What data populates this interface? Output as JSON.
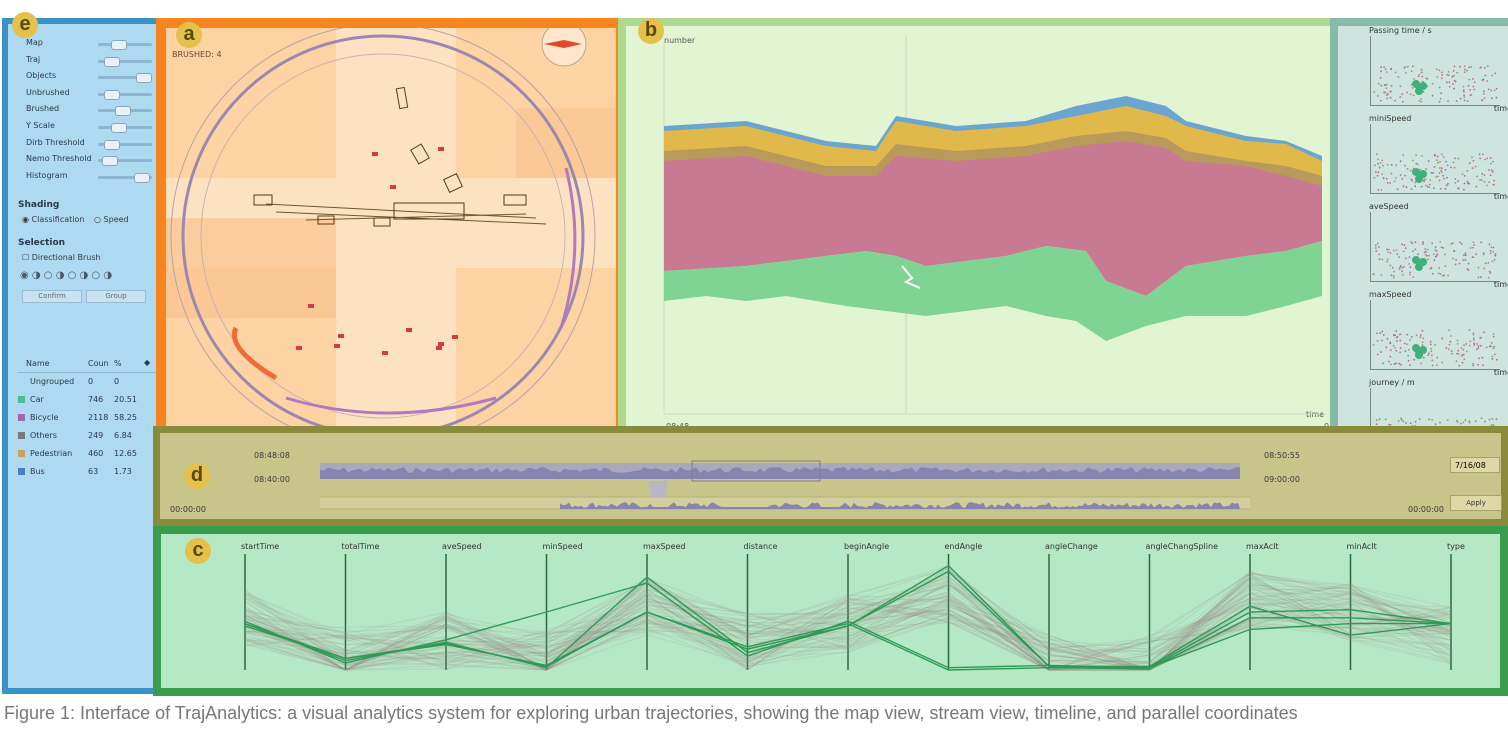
{
  "panels": {
    "a": "a",
    "b": "b",
    "c": "c",
    "d": "d",
    "e": "e"
  },
  "controls": {
    "sliders": [
      {
        "label": "Map",
        "value": 0.3
      },
      {
        "label": "Traj",
        "value": 0.15
      },
      {
        "label": "Objects",
        "value": 0.9
      },
      {
        "label": "Unbrushed",
        "value": 0.15
      },
      {
        "label": "Brushed",
        "value": 0.4
      },
      {
        "label": "Y Scale",
        "value": 0.3
      },
      {
        "label": "Dirb Threshold",
        "value": 0.15
      },
      {
        "label": "Nemo Threshold",
        "value": 0.1
      },
      {
        "label": "Histogram",
        "value": 0.85
      }
    ],
    "shading_title": "Shading",
    "shading_options": [
      "Classification",
      "Speed"
    ],
    "selection_title": "Selection",
    "directional_brush": "Directional Brush",
    "confirm_label": "Confirm",
    "group_label": "Group",
    "table_headers": [
      "Name",
      "Coun",
      "%"
    ],
    "groups": [
      {
        "name": "Ungrouped",
        "count": "0",
        "pct": "0",
        "color": "#add9f1"
      },
      {
        "name": "Car",
        "count": "746",
        "pct": "20.51",
        "color": "#4fb896"
      },
      {
        "name": "Bicycle",
        "count": "2118",
        "pct": "58.25",
        "color": "#a066b0"
      },
      {
        "name": "Others",
        "count": "249",
        "pct": "6.84",
        "color": "#7a7a7a"
      },
      {
        "name": "Pedestrian",
        "count": "460",
        "pct": "12.65",
        "color": "#c9a15a"
      },
      {
        "name": "Bus",
        "count": "63",
        "pct": "1.73",
        "color": "#4a7cc0"
      }
    ]
  },
  "map": {
    "brushed_label": "BRUSHED: 4"
  },
  "stream": {
    "ylabel": "number",
    "xlabel": "time",
    "start_time": "08:48",
    "end_time": "0"
  },
  "scatter": {
    "labels": [
      "Passing time / s",
      "miniSpeed",
      "aveSpeed",
      "maxSpeed",
      "journey / m"
    ],
    "axis_label": "time"
  },
  "timeline": {
    "top_start": "08:48:08",
    "top_end": "08:50:55",
    "mid_start": "08:40:00",
    "mid_end": "09:00:00",
    "bottom_start": "00:00:00",
    "bottom_end": "00:00:00",
    "date_value": "7/16/08",
    "apply_label": "Apply"
  },
  "parallel": {
    "axes": [
      "startTime",
      "totalTime",
      "aveSpeed",
      "minSpeed",
      "maxSpeed",
      "distance",
      "beginAngle",
      "endAngle",
      "angleChange",
      "angleChangSpline",
      "maxAcIt",
      "minAcIt",
      "type"
    ]
  },
  "caption": "Figure 1: Interface of TrajAnalytics: a visual analytics system for exploring urban trajectories, showing the map view, stream view, timeline, and parallel coordinates"
}
